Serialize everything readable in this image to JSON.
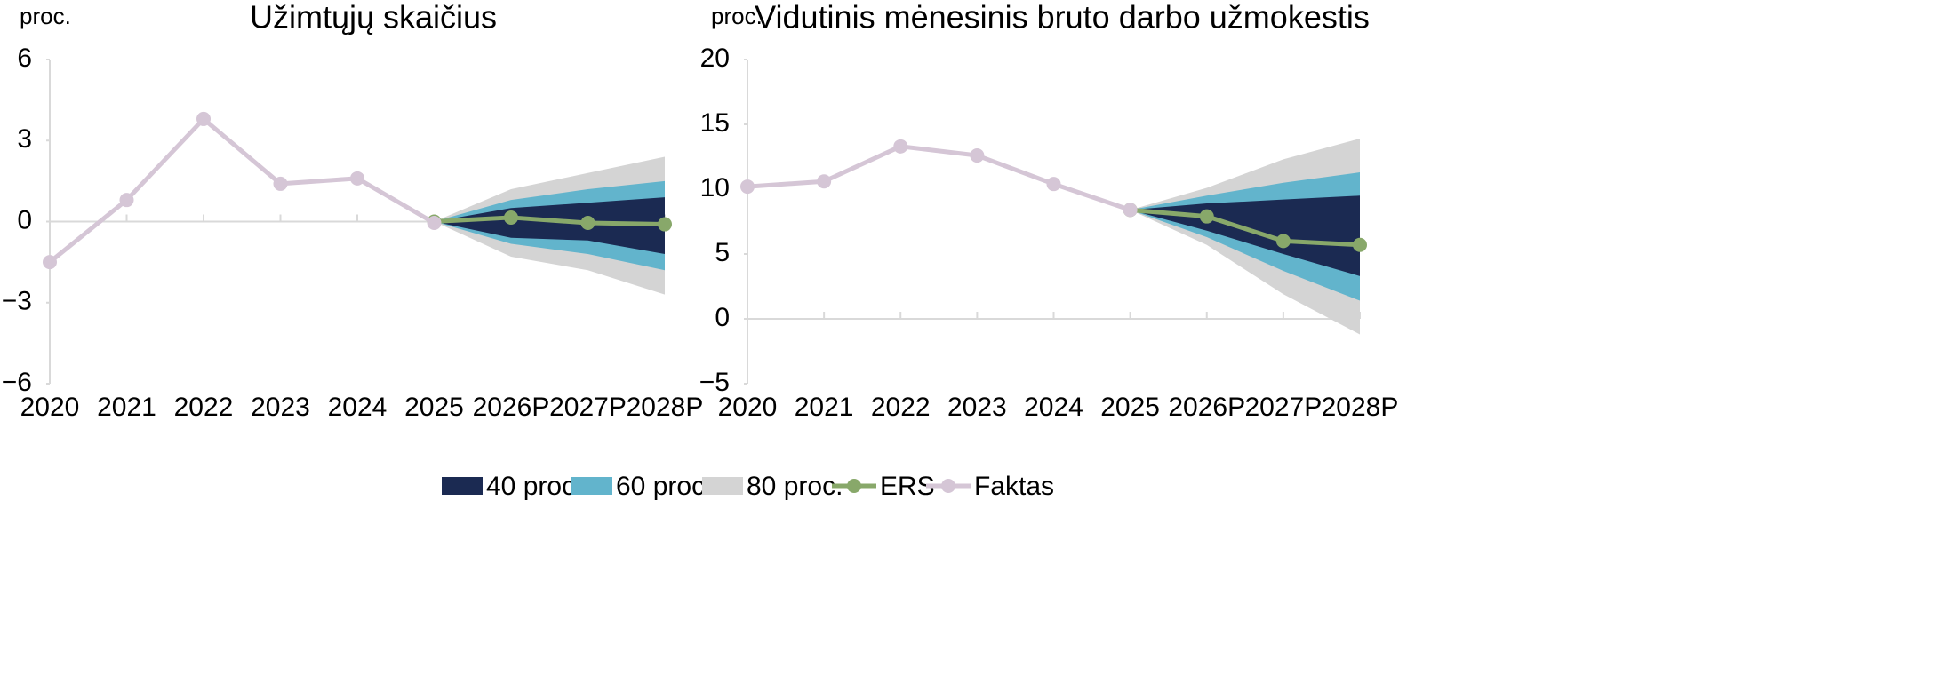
{
  "chart_data": [
    {
      "type": "line",
      "title": "Užimtųjų skaičius",
      "y_label": "proc.",
      "categories": [
        "2020",
        "2021",
        "2022",
        "2023",
        "2024",
        "2025",
        "2026P",
        "2027P",
        "2028P"
      ],
      "ylim": [
        -6,
        6
      ],
      "yticks": [
        {
          "value": -6,
          "label": "−6"
        },
        {
          "value": -3,
          "label": "−3"
        },
        0,
        3,
        6
      ],
      "series": [
        {
          "name": "40 proc.",
          "color": "#1b2a52",
          "low": [
            null,
            null,
            null,
            null,
            null,
            0,
            -0.6,
            -0.7,
            -1.2
          ],
          "high": [
            null,
            null,
            null,
            null,
            null,
            0,
            0.5,
            0.7,
            0.9
          ]
        },
        {
          "name": "60 proc.",
          "color": "#62b4cc",
          "low": [
            null,
            null,
            null,
            null,
            null,
            0,
            -0.82,
            -1.2,
            -1.8
          ],
          "high": [
            null,
            null,
            null,
            null,
            null,
            0,
            0.8,
            1.2,
            1.5
          ]
        },
        {
          "name": "80 proc.",
          "color": "#d4d4d4",
          "low": [
            null,
            null,
            null,
            null,
            null,
            0,
            -1.3,
            -1.8,
            -2.7
          ],
          "high": [
            null,
            null,
            null,
            null,
            null,
            0,
            1.2,
            1.8,
            2.4
          ]
        },
        {
          "name": "ERS",
          "color": "#88a86a",
          "values": [
            null,
            null,
            null,
            null,
            null,
            0,
            0.15,
            -0.05,
            -0.1
          ]
        },
        {
          "name": "Faktas",
          "color": "#d5c6d6",
          "values": [
            -1.5,
            0.8,
            3.8,
            1.4,
            1.6,
            -0.05,
            null,
            null,
            null
          ]
        }
      ]
    },
    {
      "type": "line",
      "title": "Vidutinis mėnesinis bruto darbo užmokestis",
      "y_label": "proc.",
      "categories": [
        "2020",
        "2021",
        "2022",
        "2023",
        "2024",
        "2025",
        "2026P",
        "2027P",
        "2028P"
      ],
      "ylim": [
        -5,
        20
      ],
      "yticks": [
        {
          "value": -5,
          "label": "−5"
        },
        0,
        5,
        10,
        15,
        20
      ],
      "series": [
        {
          "name": "40 proc.",
          "color": "#1b2a52",
          "low": [
            null,
            null,
            null,
            null,
            null,
            8.4,
            6.8,
            5.0,
            3.3
          ],
          "high": [
            null,
            null,
            null,
            null,
            null,
            8.4,
            8.9,
            9.2,
            9.5
          ]
        },
        {
          "name": "60 proc.",
          "color": "#62b4cc",
          "low": [
            null,
            null,
            null,
            null,
            null,
            8.4,
            6.3,
            3.7,
            1.4
          ],
          "high": [
            null,
            null,
            null,
            null,
            null,
            8.4,
            9.5,
            10.5,
            11.3
          ]
        },
        {
          "name": "80 proc.",
          "color": "#d4d4d4",
          "low": [
            null,
            null,
            null,
            null,
            null,
            8.4,
            5.7,
            1.9,
            -1.2
          ],
          "high": [
            null,
            null,
            null,
            null,
            null,
            8.4,
            10.1,
            12.3,
            13.9
          ]
        },
        {
          "name": "ERS",
          "color": "#88a86a",
          "values": [
            null,
            null,
            null,
            null,
            null,
            8.4,
            7.9,
            6.0,
            5.7
          ]
        },
        {
          "name": "Faktas",
          "color": "#d5c6d6",
          "values": [
            10.2,
            10.6,
            13.3,
            12.6,
            10.4,
            8.4,
            null,
            null,
            null
          ]
        }
      ]
    }
  ]
}
